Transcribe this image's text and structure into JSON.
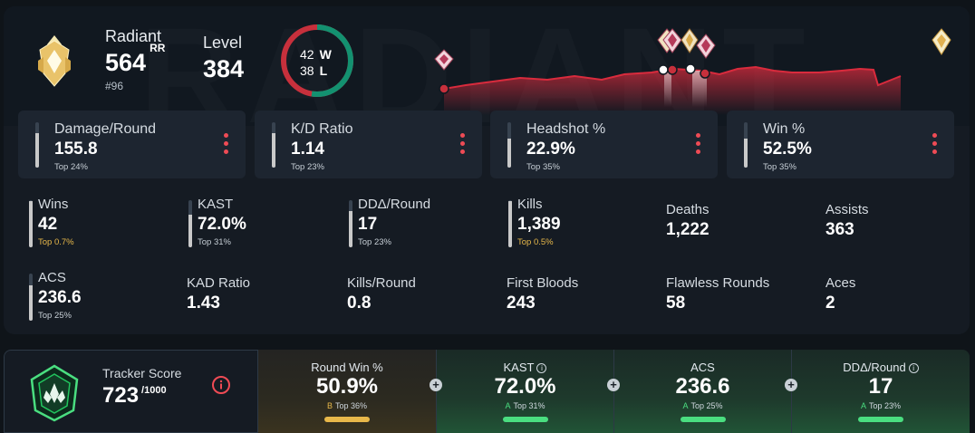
{
  "rank": {
    "name": "Radiant",
    "rr": "564",
    "rr_unit": "RR",
    "position": "#96"
  },
  "level": {
    "label": "Level",
    "value": "384"
  },
  "record": {
    "wins": "42",
    "wins_label": "W",
    "losses": "38",
    "losses_label": "L",
    "win_fraction": 0.525
  },
  "colors": {
    "accent_red": "#ef4b55",
    "win_green": "#139170",
    "gold": "#e8b84a",
    "grade_a": "#4ade80"
  },
  "stat_cards": [
    {
      "label": "Damage/Round",
      "value": "155.8",
      "top": "Top 24%",
      "fill": 0.76
    },
    {
      "label": "K/D Ratio",
      "value": "1.14",
      "top": "Top 23%",
      "fill": 0.77
    },
    {
      "label": "Headshot %",
      "value": "22.9%",
      "top": "Top 35%",
      "fill": 0.65
    },
    {
      "label": "Win %",
      "value": "52.5%",
      "top": "Top 35%",
      "fill": 0.65
    }
  ],
  "grid_row1": [
    {
      "label": "Wins",
      "value": "42",
      "top": "Top 0.7%",
      "fill": 0.99
    },
    {
      "label": "KAST",
      "value": "72.0%",
      "top": "Top 31%",
      "fill": 0.69
    },
    {
      "label": "DDΔ/Round",
      "value": "17",
      "top": "Top 23%",
      "fill": 0.77
    },
    {
      "label": "Kills",
      "value": "1,389",
      "top": "Top 0.5%",
      "fill": 0.99
    },
    {
      "label": "Deaths",
      "value": "1,222"
    },
    {
      "label": "Assists",
      "value": "363"
    }
  ],
  "grid_row2": [
    {
      "label": "ACS",
      "value": "236.6",
      "top": "Top 25%",
      "fill": 0.75
    },
    {
      "label": "KAD Ratio",
      "value": "1.43"
    },
    {
      "label": "Kills/Round",
      "value": "0.8"
    },
    {
      "label": "First Bloods",
      "value": "243"
    },
    {
      "label": "Flawless Rounds",
      "value": "58"
    },
    {
      "label": "Aces",
      "value": "2"
    }
  ],
  "tracker": {
    "label": "Tracker Score",
    "value": "723",
    "max": "/1000",
    "metrics": [
      {
        "label": "Round Win %",
        "value": "50.9%",
        "grade": "B",
        "top": "Top 36%",
        "info": false
      },
      {
        "label": "KAST",
        "value": "72.0%",
        "grade": "A",
        "top": "Top 31%",
        "info": true
      },
      {
        "label": "ACS",
        "value": "236.6",
        "grade": "A",
        "top": "Top 25%",
        "info": false
      },
      {
        "label": "DDΔ/Round",
        "value": "17",
        "grade": "A",
        "top": "Top 23%",
        "info": true
      }
    ]
  }
}
